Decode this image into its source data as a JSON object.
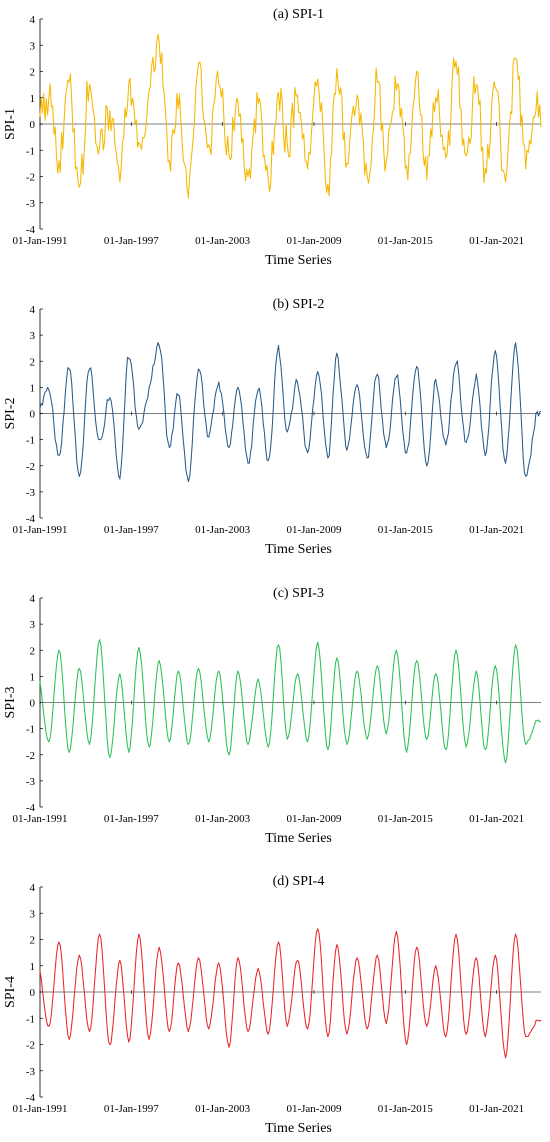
{
  "chart_data": [
    {
      "type": "line",
      "title": "(a) SPI-1",
      "xlabel": "Time Series",
      "ylabel": "SPI-1",
      "color": "#f5b800",
      "ylim": [
        -4,
        4
      ],
      "yticks": [
        -4,
        -3,
        -2,
        -1,
        0,
        1,
        2,
        3,
        4
      ],
      "x_range": [
        "1991-01",
        "2023-12"
      ],
      "xticks": [
        "01-Jan-1991",
        "01-Jan-1997",
        "01-Jan-2003",
        "01-Jan-2009",
        "01-Jan-2015",
        "01-Jan-2021"
      ],
      "pattern": "noisy",
      "series": [
        {
          "x": [
            "1991-01",
            "1991-08",
            "1992-04",
            "1992-12",
            "1993-08",
            "1994-04",
            "1994-12",
            "1995-08",
            "1996-04",
            "1996-11",
            "1997-07",
            "1998-03",
            "1998-11",
            "1999-07",
            "2000-02",
            "2000-10",
            "2001-06",
            "2002-02",
            "2002-10",
            "2003-06",
            "2004-01",
            "2004-09",
            "2005-05",
            "2006-01",
            "2006-09",
            "2007-04",
            "2007-12",
            "2008-08",
            "2009-04",
            "2009-12",
            "2010-07",
            "2011-03",
            "2011-11",
            "2012-07",
            "2013-03",
            "2013-10",
            "2014-06",
            "2015-02",
            "2015-10",
            "2016-06",
            "2017-01",
            "2017-09",
            "2018-05",
            "2019-01",
            "2019-09",
            "2020-04",
            "2020-12",
            "2021-08",
            "2022-04",
            "2022-12",
            "2023-08"
          ],
          "values": [
            0.3,
            1.0,
            -1.4,
            1.6,
            -2.4,
            1.5,
            -0.9,
            0.5,
            -2.2,
            1.6,
            -0.7,
            1.3,
            3.1,
            -1.4,
            0.6,
            -2.8,
            2.3,
            -0.8,
            1.5,
            -1.2,
            0.9,
            -2.0,
            0.8,
            -2.1,
            1.2,
            -0.8,
            1.1,
            -1.7,
            1.7,
            -2.3,
            2.1,
            -1.5,
            1.1,
            -2.0,
            1.6,
            -1.4,
            1.3,
            -1.6,
            2.0,
            -2.1,
            1.0,
            -1.3,
            2.4,
            -1.2,
            1.5,
            -1.7,
            1.4,
            -2.2,
            2.5,
            -1.7,
            0.5
          ]
        }
      ]
    },
    {
      "type": "line",
      "title": "(b) SPI-2",
      "xlabel": "Time Series",
      "ylabel": "SPI-2",
      "color": "#2b5b8a",
      "ylim": [
        -4,
        4
      ],
      "yticks": [
        -4,
        -3,
        -2,
        -1,
        0,
        1,
        2,
        3,
        4
      ],
      "x_range": [
        "1991-01",
        "2023-12"
      ],
      "xticks": [
        "01-Jan-1991",
        "01-Jan-1997",
        "01-Jan-2003",
        "01-Jan-2009",
        "01-Jan-2015",
        "01-Jan-2021"
      ],
      "pattern": "medium",
      "series": [
        {
          "x": [
            "1991-01",
            "1991-08",
            "1992-04",
            "1992-12",
            "1993-08",
            "1994-04",
            "1994-12",
            "1995-08",
            "1996-04",
            "1996-11",
            "1997-07",
            "1998-03",
            "1998-11",
            "1999-07",
            "2000-02",
            "2000-10",
            "2001-06",
            "2002-02",
            "2002-10",
            "2003-06",
            "2004-01",
            "2004-09",
            "2005-05",
            "2006-01",
            "2006-09",
            "2007-04",
            "2007-12",
            "2008-08",
            "2009-04",
            "2009-12",
            "2010-07",
            "2011-03",
            "2011-11",
            "2012-07",
            "2013-03",
            "2013-10",
            "2014-06",
            "2015-02",
            "2015-10",
            "2016-06",
            "2017-01",
            "2017-09",
            "2018-05",
            "2019-01",
            "2019-09",
            "2020-04",
            "2020-12",
            "2021-08",
            "2022-04",
            "2022-12",
            "2023-08"
          ],
          "values": [
            0.2,
            0.9,
            -1.6,
            1.7,
            -2.4,
            1.7,
            -1.0,
            0.6,
            -2.5,
            2.1,
            -0.6,
            1.0,
            2.6,
            -1.3,
            0.7,
            -2.6,
            1.7,
            -0.9,
            1.2,
            -1.3,
            1.0,
            -1.9,
            0.9,
            -1.8,
            2.6,
            -0.7,
            1.2,
            -1.5,
            1.6,
            -1.7,
            2.3,
            -1.4,
            1.1,
            -1.7,
            1.5,
            -1.3,
            1.4,
            -1.5,
            1.8,
            -2.0,
            1.3,
            -1.2,
            1.9,
            -1.1,
            1.5,
            -1.6,
            2.4,
            -1.9,
            2.7,
            -2.4,
            0.0
          ]
        }
      ]
    },
    {
      "type": "line",
      "title": "(c) SPI-3",
      "xlabel": "Time Series",
      "ylabel": "SPI-3",
      "color": "#2ec05a",
      "ylim": [
        -4,
        4
      ],
      "yticks": [
        -4,
        -3,
        -2,
        -1,
        0,
        1,
        2,
        3,
        4
      ],
      "x_range": [
        "1991-01",
        "2023-12"
      ],
      "xticks": [
        "01-Jan-1991",
        "01-Jan-1997",
        "01-Jan-2003",
        "01-Jan-2009",
        "01-Jan-2015",
        "01-Jan-2021"
      ],
      "pattern": "smooth",
      "series": [
        {
          "x": [
            "1991-01",
            "1991-08",
            "1992-04",
            "1992-12",
            "1993-08",
            "1994-04",
            "1994-12",
            "1995-08",
            "1996-04",
            "1996-11",
            "1997-07",
            "1998-03",
            "1998-11",
            "1999-07",
            "2000-02",
            "2000-10",
            "2001-06",
            "2002-02",
            "2002-10",
            "2003-06",
            "2004-01",
            "2004-09",
            "2005-05",
            "2006-01",
            "2006-09",
            "2007-04",
            "2007-12",
            "2008-08",
            "2009-04",
            "2009-12",
            "2010-07",
            "2011-03",
            "2011-11",
            "2012-07",
            "2013-03",
            "2013-10",
            "2014-06",
            "2015-02",
            "2015-10",
            "2016-06",
            "2017-01",
            "2017-09",
            "2018-05",
            "2019-01",
            "2019-09",
            "2020-04",
            "2020-12",
            "2021-08",
            "2022-04",
            "2022-12",
            "2023-08"
          ],
          "values": [
            0.8,
            -1.5,
            2.0,
            -1.9,
            1.3,
            -1.6,
            2.4,
            -2.1,
            1.1,
            -1.9,
            2.1,
            -1.7,
            1.6,
            -1.5,
            1.2,
            -1.6,
            1.3,
            -1.5,
            1.2,
            -2.0,
            1.2,
            -1.6,
            0.9,
            -1.7,
            2.2,
            -1.4,
            1.1,
            -1.5,
            2.3,
            -1.8,
            1.7,
            -1.6,
            1.2,
            -1.4,
            1.4,
            -1.2,
            2.0,
            -1.9,
            1.6,
            -1.4,
            1.1,
            -1.8,
            2.0,
            -1.7,
            1.2,
            -1.8,
            1.4,
            -2.3,
            2.2,
            -1.6,
            -0.7
          ]
        }
      ]
    },
    {
      "type": "line",
      "title": "(d) SPI-4",
      "xlabel": "Time Series",
      "ylabel": "SPI-4",
      "color": "#e8262c",
      "ylim": [
        -4,
        4
      ],
      "yticks": [
        -4,
        -3,
        -2,
        -1,
        0,
        1,
        2,
        3,
        4
      ],
      "x_range": [
        "1991-01",
        "2023-12"
      ],
      "xticks": [
        "01-Jan-1991",
        "01-Jan-1997",
        "01-Jan-2003",
        "01-Jan-2009",
        "01-Jan-2015",
        "01-Jan-2021"
      ],
      "pattern": "smooth",
      "series": [
        {
          "x": [
            "1991-01",
            "1991-08",
            "1992-04",
            "1992-12",
            "1993-08",
            "1994-04",
            "1994-12",
            "1995-08",
            "1996-04",
            "1996-11",
            "1997-07",
            "1998-03",
            "1998-11",
            "1999-07",
            "2000-02",
            "2000-10",
            "2001-06",
            "2002-02",
            "2002-10",
            "2003-06",
            "2004-01",
            "2004-09",
            "2005-05",
            "2006-01",
            "2006-09",
            "2007-04",
            "2007-12",
            "2008-08",
            "2009-04",
            "2009-12",
            "2010-07",
            "2011-03",
            "2011-11",
            "2012-07",
            "2013-03",
            "2013-10",
            "2014-06",
            "2015-02",
            "2015-10",
            "2016-06",
            "2017-01",
            "2017-09",
            "2018-05",
            "2019-01",
            "2019-09",
            "2020-04",
            "2020-12",
            "2021-08",
            "2022-04",
            "2022-12",
            "2023-08"
          ],
          "values": [
            0.8,
            -1.3,
            1.9,
            -1.8,
            1.4,
            -1.5,
            2.2,
            -2.0,
            1.2,
            -1.9,
            2.2,
            -1.8,
            1.7,
            -1.5,
            1.1,
            -1.5,
            1.3,
            -1.4,
            1.1,
            -2.1,
            1.3,
            -1.5,
            0.9,
            -1.6,
            1.9,
            -1.3,
            1.2,
            -1.4,
            2.4,
            -1.7,
            1.8,
            -1.6,
            1.3,
            -1.4,
            1.4,
            -1.2,
            2.3,
            -2.0,
            1.7,
            -1.3,
            1.0,
            -1.7,
            2.2,
            -1.6,
            1.3,
            -1.7,
            1.4,
            -2.5,
            2.2,
            -1.7,
            -1.1
          ]
        }
      ]
    }
  ]
}
